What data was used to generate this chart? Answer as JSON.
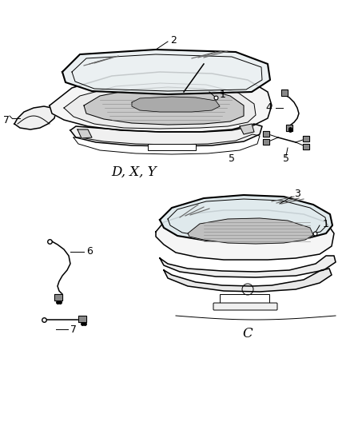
{
  "background_color": "#ffffff",
  "figsize": [
    4.38,
    5.33
  ],
  "dpi": 100,
  "label_DXY": "D, X, Y",
  "label_C": "C",
  "line_color": "#000000",
  "label_fontsize": 12,
  "part_num_fontsize": 9
}
